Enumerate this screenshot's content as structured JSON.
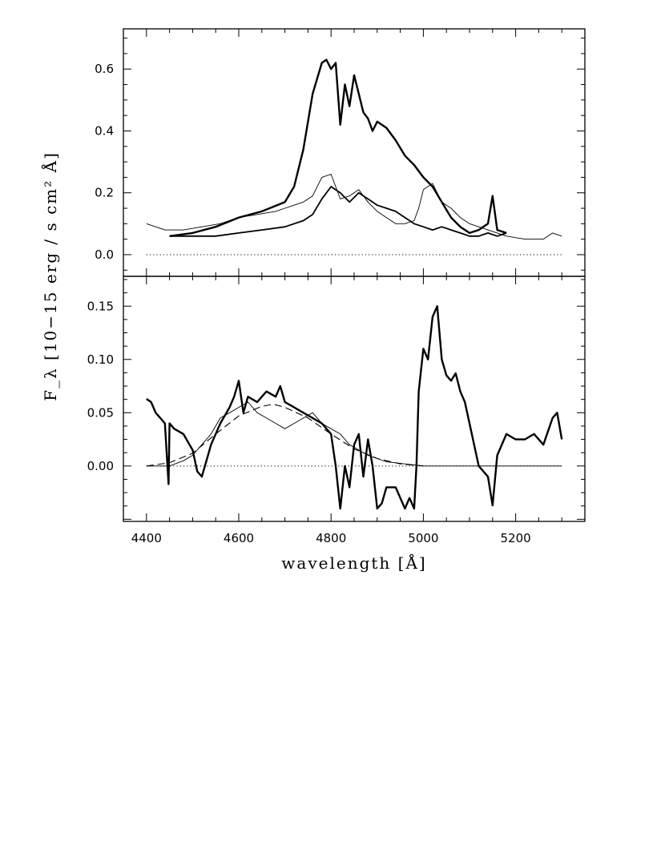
{
  "chart_data": [
    {
      "type": "line",
      "panel": "top",
      "ylabel": "F_λ [10−15 erg / s cm² Å]",
      "xlim": [
        4350,
        5350
      ],
      "ylim": [
        -0.07,
        0.73
      ],
      "yticks": [
        "0.0",
        "0.2",
        "0.4",
        "0.6"
      ],
      "ytick_values": [
        0.0,
        0.2,
        0.4,
        0.6
      ],
      "zero_line": true,
      "series": [
        {
          "style": "thick",
          "x": [
            4450,
            4500,
            4550,
            4600,
            4650,
            4700,
            4720,
            4740,
            4760,
            4780,
            4790,
            4800,
            4810,
            4820,
            4830,
            4840,
            4850,
            4860,
            4870,
            4880,
            4890,
            4900,
            4920,
            4940,
            4960,
            4980,
            5000,
            5020,
            5040,
            5060,
            5080,
            5100,
            5120,
            5140,
            5150,
            5160,
            5180
          ],
          "y": [
            0.06,
            0.07,
            0.09,
            0.12,
            0.14,
            0.17,
            0.22,
            0.34,
            0.52,
            0.62,
            0.63,
            0.6,
            0.62,
            0.42,
            0.55,
            0.48,
            0.58,
            0.52,
            0.46,
            0.44,
            0.4,
            0.43,
            0.41,
            0.37,
            0.32,
            0.29,
            0.25,
            0.22,
            0.17,
            0.12,
            0.09,
            0.07,
            0.08,
            0.1,
            0.19,
            0.08,
            0.07
          ]
        },
        {
          "style": "medium",
          "x": [
            4450,
            4500,
            4550,
            4600,
            4650,
            4700,
            4740,
            4760,
            4780,
            4800,
            4820,
            4840,
            4860,
            4880,
            4900,
            4920,
            4940,
            4960,
            4980,
            5000,
            5020,
            5040,
            5060,
            5080,
            5100,
            5120,
            5140,
            5160,
            5180
          ],
          "y": [
            0.06,
            0.06,
            0.06,
            0.07,
            0.08,
            0.09,
            0.11,
            0.13,
            0.18,
            0.22,
            0.2,
            0.17,
            0.2,
            0.18,
            0.16,
            0.15,
            0.14,
            0.12,
            0.1,
            0.09,
            0.08,
            0.09,
            0.08,
            0.07,
            0.06,
            0.06,
            0.07,
            0.06,
            0.07
          ]
        },
        {
          "style": "thin",
          "x": [
            4400,
            4440,
            4480,
            4520,
            4560,
            4600,
            4640,
            4680,
            4700,
            4720,
            4740,
            4760,
            4780,
            4800,
            4820,
            4840,
            4860,
            4880,
            4900,
            4920,
            4940,
            4960,
            4980,
            4990,
            5000,
            5020,
            5040,
            5060,
            5080,
            5100,
            5140,
            5180,
            5220,
            5260,
            5280,
            5300
          ],
          "y": [
            0.1,
            0.08,
            0.08,
            0.09,
            0.1,
            0.12,
            0.13,
            0.14,
            0.15,
            0.16,
            0.17,
            0.19,
            0.25,
            0.26,
            0.18,
            0.19,
            0.21,
            0.17,
            0.14,
            0.12,
            0.1,
            0.1,
            0.11,
            0.15,
            0.21,
            0.23,
            0.17,
            0.15,
            0.12,
            0.1,
            0.08,
            0.06,
            0.05,
            0.05,
            0.07,
            0.06
          ]
        }
      ]
    },
    {
      "type": "line",
      "panel": "bottom",
      "xlabel": "wavelength [Å]",
      "xlim": [
        4350,
        5350
      ],
      "ylim": [
        -0.052,
        0.178
      ],
      "xticks": [
        "4400",
        "4600",
        "4800",
        "5000",
        "5200"
      ],
      "xtick_values": [
        4400,
        4600,
        4800,
        5000,
        5200
      ],
      "yticks": [
        "0.00",
        "0.05",
        "0.10",
        "0.15"
      ],
      "ytick_values": [
        0.0,
        0.05,
        0.1,
        0.15
      ],
      "zero_line": true,
      "series": [
        {
          "style": "thick",
          "x": [
            4400,
            4410,
            4420,
            4430,
            4440,
            4448,
            4450,
            4460,
            4480,
            4500,
            4510,
            4520,
            4530,
            4540,
            4560,
            4580,
            4590,
            4600,
            4610,
            4620,
            4640,
            4660,
            4680,
            4690,
            4700,
            4720,
            4740,
            4760,
            4780,
            4800,
            4810,
            4820,
            4830,
            4840,
            4850,
            4860,
            4870,
            4880,
            4890,
            4900,
            4910,
            4920,
            4940,
            4960,
            4970,
            4980,
            4985,
            4990,
            5000,
            5010,
            5020,
            5030,
            5040,
            5050,
            5060,
            5070,
            5080,
            5090,
            5100,
            5120,
            5140,
            5150,
            5160,
            5180,
            5200,
            5220,
            5240,
            5260,
            5280,
            5290,
            5300
          ],
          "y": [
            0.063,
            0.06,
            0.05,
            0.045,
            0.04,
            -0.017,
            0.04,
            0.035,
            0.03,
            0.015,
            -0.005,
            -0.01,
            0.005,
            0.02,
            0.04,
            0.055,
            0.065,
            0.08,
            0.05,
            0.065,
            0.06,
            0.07,
            0.065,
            0.075,
            0.06,
            0.055,
            0.05,
            0.045,
            0.04,
            0.03,
            0.0,
            -0.04,
            0.0,
            -0.02,
            0.02,
            0.03,
            -0.01,
            0.025,
            0.0,
            -0.04,
            -0.035,
            -0.02,
            -0.02,
            -0.04,
            -0.03,
            -0.04,
            0.0,
            0.07,
            0.11,
            0.1,
            0.14,
            0.15,
            0.1,
            0.085,
            0.08,
            0.087,
            0.07,
            0.06,
            0.04,
            0.0,
            -0.01,
            -0.037,
            0.01,
            0.03,
            0.025,
            0.025,
            0.03,
            0.02,
            0.045,
            0.05,
            0.025
          ]
        },
        {
          "style": "thin",
          "x": [
            4400,
            4450,
            4480,
            4500,
            4520,
            4540,
            4560,
            4580,
            4600,
            4620,
            4640,
            4660,
            4680,
            4700,
            4720,
            4740,
            4760,
            4780,
            4800,
            4820,
            4840,
            4860,
            4880,
            4900,
            4920,
            4940,
            4960,
            4980,
            5000,
            5050,
            5100,
            5150,
            5200,
            5250,
            5300
          ],
          "y": [
            0.0,
            0.0,
            0.005,
            0.01,
            0.02,
            0.03,
            0.045,
            0.05,
            0.055,
            0.06,
            0.05,
            0.045,
            0.04,
            0.035,
            0.04,
            0.045,
            0.05,
            0.04,
            0.035,
            0.03,
            0.02,
            0.015,
            0.01,
            0.007,
            0.004,
            0.003,
            0.002,
            0.001,
            0.0,
            0.0,
            0.0,
            0.0,
            0.0,
            0.0,
            0.0
          ]
        },
        {
          "style": "dashed",
          "x": [
            4400,
            4450,
            4500,
            4550,
            4600,
            4650,
            4675,
            4700,
            4750,
            4800,
            4850,
            4900,
            4950,
            5000
          ],
          "y": [
            0.0,
            0.003,
            0.012,
            0.03,
            0.047,
            0.056,
            0.058,
            0.055,
            0.045,
            0.03,
            0.016,
            0.007,
            0.002,
            0.0
          ]
        }
      ]
    }
  ]
}
